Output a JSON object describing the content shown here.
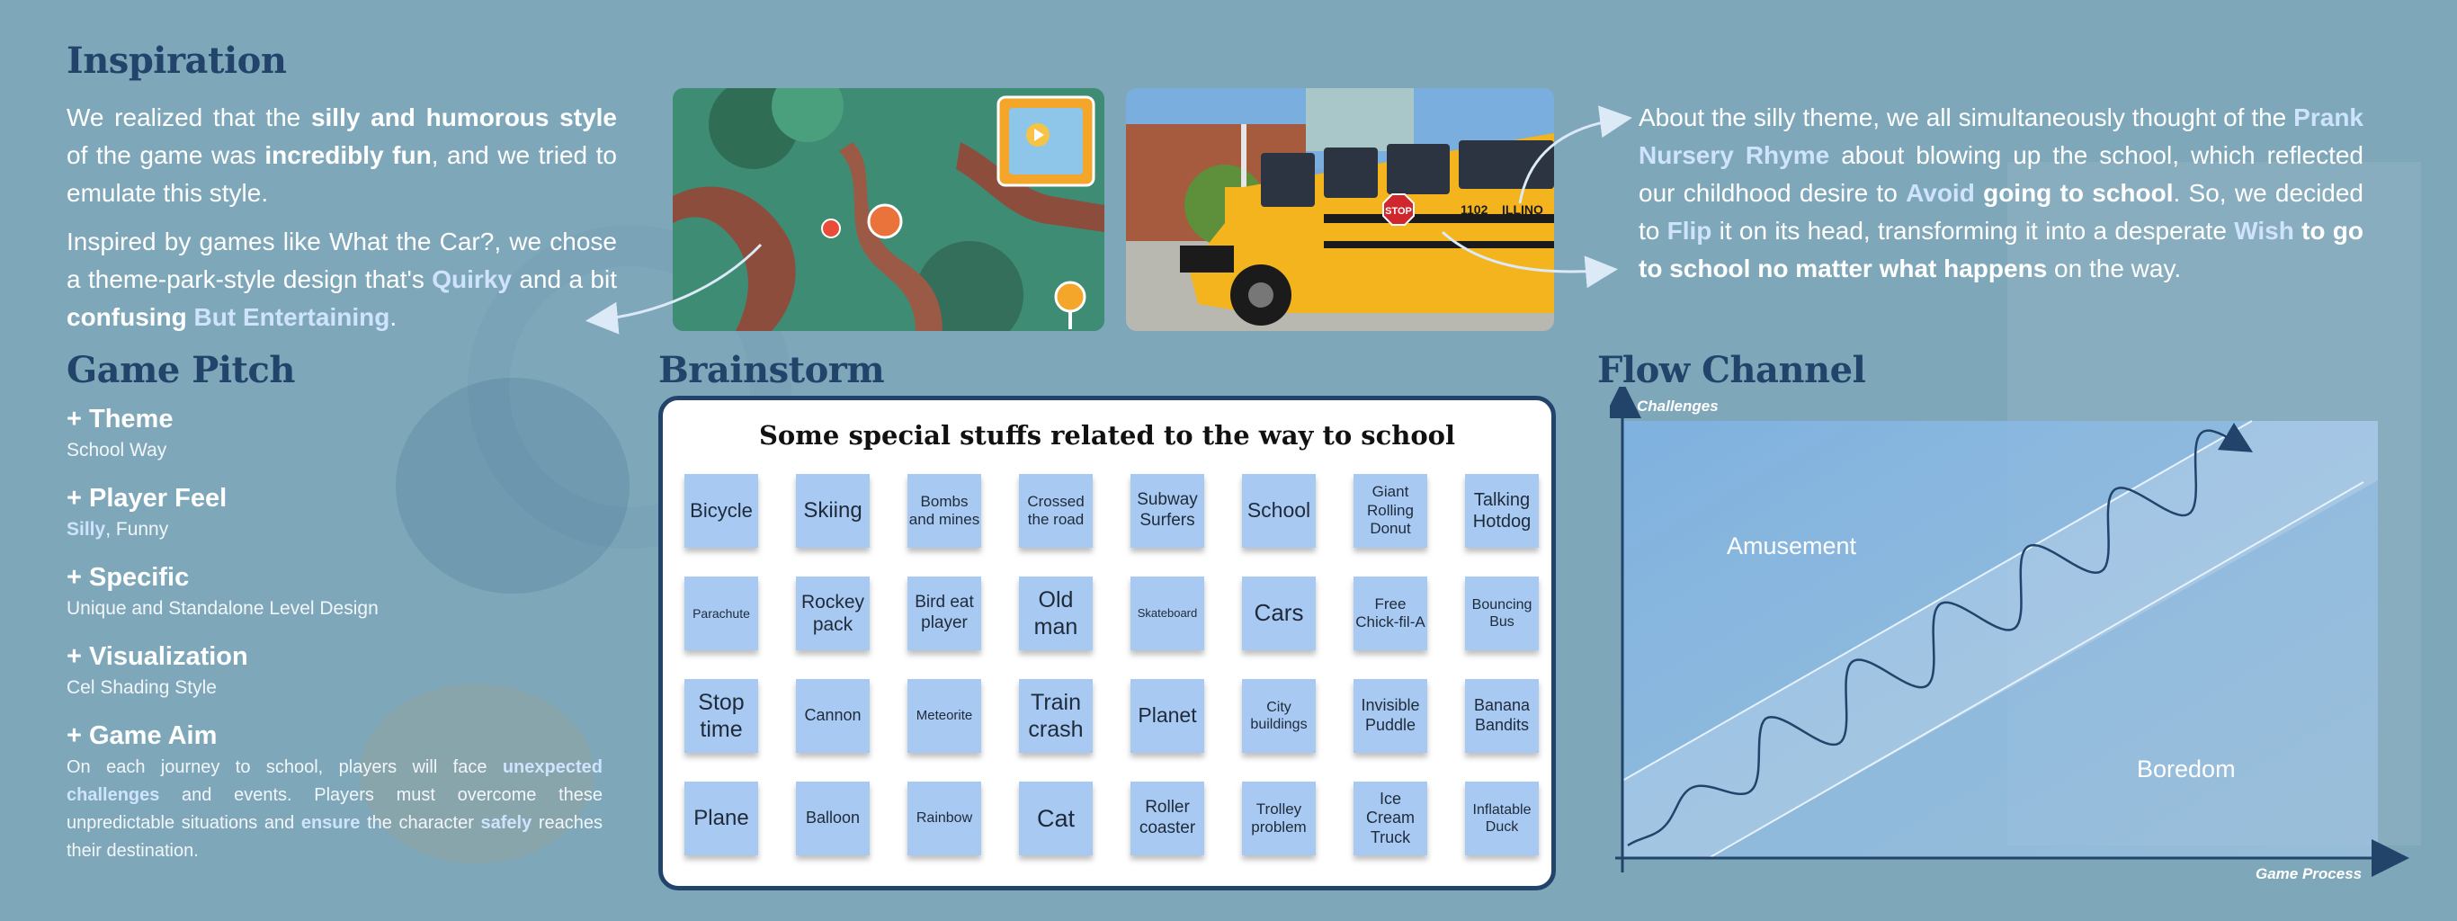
{
  "inspiration": {
    "heading": "Inspiration",
    "p1": [
      {
        "t": "We realized that the ",
        "s": "n"
      },
      {
        "t": "silly and humorous style",
        "s": "b"
      },
      {
        "t": " of the game was ",
        "s": "n"
      },
      {
        "t": "incredibly fun",
        "s": "b"
      },
      {
        "t": ", and we tried to emulate this style.",
        "s": "n"
      }
    ],
    "p2": [
      {
        "t": "Inspired by games like What the Car?, we chose a theme-park-style design that's ",
        "s": "n"
      },
      {
        "t": "Quirky",
        "s": "h"
      },
      {
        "t": " and a bit ",
        "s": "n"
      },
      {
        "t": "confusing",
        "s": "b"
      },
      {
        "t": " ",
        "s": "n"
      },
      {
        "t": "But Entertaining",
        "s": "h"
      },
      {
        "t": ".",
        "s": "n"
      }
    ]
  },
  "stop_sign": "STOP",
  "bus_number": "1102",
  "bus_text": "ILLINO",
  "prank": [
    {
      "t": "About the silly theme, we all simultaneously thought of the ",
      "s": "n"
    },
    {
      "t": "Prank Nursery Rhyme",
      "s": "h"
    },
    {
      "t": " about blowing up the school, which reflected our childhood desire to ",
      "s": "n"
    },
    {
      "t": "Avoid",
      "s": "h"
    },
    {
      "t": " ",
      "s": "n"
    },
    {
      "t": "going to school",
      "s": "b"
    },
    {
      "t": ". So, we decided to ",
      "s": "n"
    },
    {
      "t": "Flip",
      "s": "h"
    },
    {
      "t": " it on its head, transforming it into a desperate ",
      "s": "n"
    },
    {
      "t": "Wish",
      "s": "h"
    },
    {
      "t": " ",
      "s": "n"
    },
    {
      "t": "to go to school no matter what happens",
      "s": "b"
    },
    {
      "t": " on the way.",
      "s": "n"
    }
  ],
  "pitch": {
    "heading": "Game Pitch",
    "theme_title": "+ Theme",
    "theme_desc": "School Way",
    "feel_title": "+ Player Feel",
    "feel_highlight": "Silly",
    "feel_rest": ", Funny",
    "specific_title": "+ Specific",
    "specific_desc": "Unique and Standalone Level Design",
    "vis_title": "+ Visualization",
    "vis_desc": "Cel Shading Style",
    "aim_title": "+ Game Aim",
    "aim_desc": [
      {
        "t": "On each journey to school, players will face ",
        "s": "n"
      },
      {
        "t": "unexpected challenges",
        "s": "h"
      },
      {
        "t": " and events. Players must overcome these unpredictable situations and ",
        "s": "n"
      },
      {
        "t": "ensure",
        "s": "h"
      },
      {
        "t": " the character ",
        "s": "n"
      },
      {
        "t": "safely",
        "s": "h"
      },
      {
        "t": " reaches their destination.",
        "s": "n"
      }
    ]
  },
  "brainstorm": {
    "heading": "Brainstorm",
    "title": "Some special stuffs related to the way to school",
    "rows": [
      [
        "Bicycle",
        "Skiing",
        "Bombs and mines",
        "Crossed the road",
        "Subway Surfers",
        "School",
        "Giant Rolling Donut",
        "Talking Hotdog"
      ],
      [
        "Parachute",
        "Rockey pack",
        "Bird eat player",
        "Old man",
        "Skateboard",
        "Cars",
        "Free Chick-fil-A",
        "Bouncing Bus"
      ],
      [
        "Stop time",
        "Cannon",
        "Meteorite",
        "Train crash",
        "Planet",
        "City buildings",
        "Invisible Puddle",
        "Banana Bandits"
      ],
      [
        "Plane",
        "Balloon",
        "Rainbow",
        "Cat",
        "Roller coaster",
        "Trolley problem",
        "Ice Cream Truck",
        "Inflatable Duck"
      ]
    ],
    "sizes": [
      [
        22,
        24,
        17,
        17,
        19,
        23,
        17,
        20
      ],
      [
        14,
        21,
        19,
        25,
        13,
        26,
        17,
        16
      ],
      [
        25,
        18,
        15,
        25,
        23,
        16,
        18,
        18
      ],
      [
        24,
        18,
        16,
        27,
        19,
        17,
        18,
        16
      ]
    ]
  },
  "flow": {
    "heading": "Flow Channel",
    "y_axis": "Challenges",
    "x_axis": "Game Process",
    "amusement": "Amusement",
    "boredom": "Boredom"
  },
  "colors": {
    "background": "#7ea8ba",
    "heading": "#22446b",
    "highlight": "#cfe3ff",
    "sticky_note": "#a8caf2"
  }
}
